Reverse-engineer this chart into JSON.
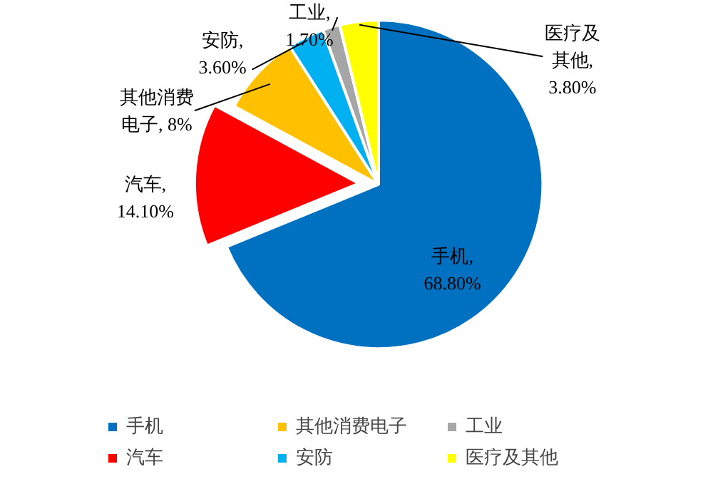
{
  "chart_data": {
    "type": "pie",
    "categories": [
      "手机",
      "汽车",
      "其他消费电子",
      "安防",
      "工业",
      "医疗及其他"
    ],
    "values": [
      68.8,
      14.1,
      8,
      3.6,
      1.7,
      3.8
    ],
    "colors": [
      "#0070c0",
      "#ff0000",
      "#ffc000",
      "#00b0f0",
      "#a6a6a6",
      "#ffff00"
    ],
    "value_labels": [
      "手机, 68.80%",
      "汽车, 14.10%",
      "其他消费电子, 8%",
      "安防, 3.60%",
      "工业, 1.70%",
      "医疗及其他, 3.80%"
    ],
    "legend": "bottom"
  }
}
